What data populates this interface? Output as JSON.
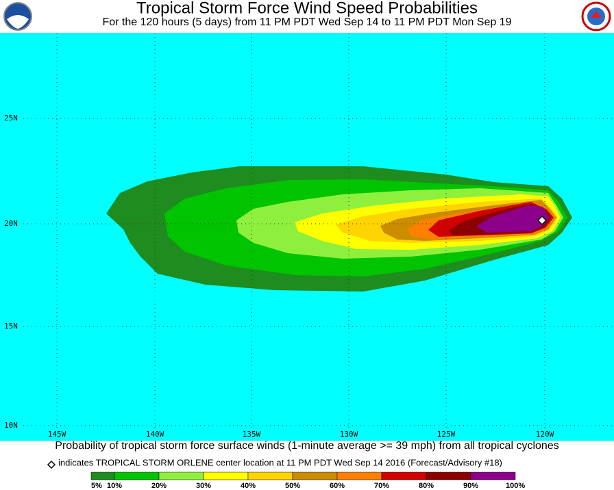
{
  "header": {
    "title": "Tropical Storm Force Wind Speed Probabilities",
    "subtitle": "For the 120 hours (5 days) from 11 PM PDT Wed Sep 14 to 11 PM PDT Mon Sep 19"
  },
  "map": {
    "lat_labels": [
      "25N",
      "20N",
      "15N",
      "10N"
    ],
    "lon_labels": [
      "145W",
      "140W",
      "135W",
      "130W",
      "125W",
      "120W"
    ]
  },
  "footer": {
    "caption": "Probability of tropical storm force surface winds (1-minute average >= 39 mph) from all tropical cyclones",
    "note": "indicates TROPICAL STORM ORLENE center location at 11 PM PDT Wed Sep 14 2016 (Forecast/Advisory #18)"
  },
  "legend": {
    "labels": [
      "5%",
      "10%",
      "20%",
      "30%",
      "40%",
      "50%",
      "60%",
      "70%",
      "80%",
      "90%",
      "100%"
    ],
    "colors": [
      "#1e8c1e",
      "#00c400",
      "#8ef03c",
      "#ffff00",
      "#ffd400",
      "#cc8c00",
      "#ff8000",
      "#d20000",
      "#8c0000",
      "#8c008c"
    ]
  }
}
